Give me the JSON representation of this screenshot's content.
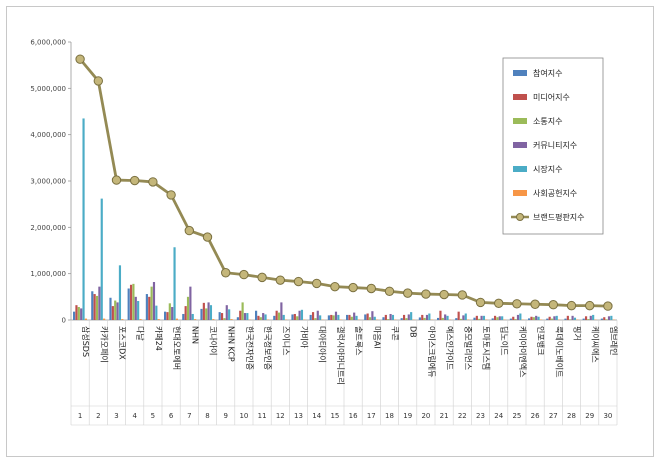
{
  "chart_data": {
    "type": "bar",
    "title": "",
    "xlabel": "",
    "ylabel": "",
    "ylim": [
      0,
      6000000
    ],
    "yticks": [
      "0",
      "1,000,000",
      "2,000,000",
      "3,000,000",
      "4,000,000",
      "5,000,000",
      "6,000,000"
    ],
    "grid": false,
    "legend_position": "top-right",
    "indices": [
      "1",
      "2",
      "3",
      "4",
      "5",
      "6",
      "7",
      "8",
      "9",
      "10",
      "11",
      "12",
      "13",
      "14",
      "15",
      "16",
      "17",
      "18",
      "19",
      "20",
      "21",
      "22",
      "23",
      "24",
      "25",
      "26",
      "27",
      "28",
      "29",
      "30"
    ],
    "categories": [
      "삼성SDS",
      "카카오페이",
      "포스코DX",
      "다날",
      "카페24",
      "현대오토에버",
      "NHN",
      "코나아이",
      "NHN KCP",
      "한국전자인증",
      "한국정보인증",
      "즈이니스",
      "가비아",
      "대아티아이",
      "갤럭시아머니트리",
      "솔트룩스",
      "마음AI",
      "쿠콘",
      "DB",
      "아이스크림에듀",
      "예스인가이드",
      "중모빌리언스",
      "토마토시스템",
      "딥노이드",
      "케이아이엔엑스",
      "인포뱅크",
      "룩데이노베이트",
      "핑거",
      "케이씨에스",
      "엠브레인"
    ],
    "colors": {
      "participation": "#4f81bd",
      "media": "#c0504d",
      "communication": "#9bbb59",
      "community": "#8064a2",
      "market": "#4bacc6",
      "social": "#f79646",
      "brand": "#948a54"
    },
    "series": [
      {
        "key": "participation",
        "name": "참여지수",
        "values": [
          180000,
          620000,
          480000,
          680000,
          560000,
          180000,
          130000,
          240000,
          170000,
          60000,
          200000,
          90000,
          120000,
          110000,
          100000,
          110000,
          120000,
          60000,
          40000,
          55000,
          45000,
          40000,
          50000,
          35000,
          30000,
          35000,
          30000,
          30000,
          30000,
          30000
        ]
      },
      {
        "key": "media",
        "name": "미디어지수",
        "values": [
          320000,
          560000,
          300000,
          760000,
          500000,
          170000,
          300000,
          370000,
          150000,
          200000,
          90000,
          200000,
          130000,
          170000,
          110000,
          110000,
          140000,
          110000,
          110000,
          110000,
          200000,
          180000,
          90000,
          90000,
          70000,
          70000,
          70000,
          90000,
          80000,
          60000
        ]
      },
      {
        "key": "communication",
        "name": "소통지수",
        "values": [
          280000,
          520000,
          420000,
          780000,
          720000,
          360000,
          500000,
          250000,
          40000,
          380000,
          60000,
          160000,
          80000,
          40000,
          100000,
          70000,
          60000,
          20000,
          40000,
          45000,
          45000,
          25000,
          25000,
          60000,
          20000,
          60000,
          30000,
          15000,
          20000,
          15000
        ]
      },
      {
        "key": "community",
        "name": "커뮤니티지수",
        "values": [
          250000,
          720000,
          380000,
          500000,
          820000,
          280000,
          720000,
          380000,
          320000,
          150000,
          150000,
          380000,
          200000,
          200000,
          180000,
          160000,
          190000,
          130000,
          120000,
          110000,
          120000,
          100000,
          90000,
          80000,
          110000,
          90000,
          80000,
          90000,
          90000,
          80000
        ]
      },
      {
        "key": "market",
        "name": "시장지수",
        "values": [
          4350000,
          2620000,
          1180000,
          410000,
          310000,
          1570000,
          130000,
          320000,
          230000,
          150000,
          120000,
          110000,
          220000,
          100000,
          110000,
          90000,
          70000,
          110000,
          170000,
          140000,
          90000,
          140000,
          90000,
          80000,
          140000,
          70000,
          90000,
          50000,
          110000,
          90000
        ]
      },
      {
        "key": "social",
        "name": "사회공헌지수",
        "values": [
          30000,
          30000,
          20000,
          20000,
          20000,
          30000,
          20000,
          20000,
          20000,
          10000,
          10000,
          10000,
          10000,
          10000,
          10000,
          10000,
          10000,
          10000,
          10000,
          10000,
          10000,
          10000,
          10000,
          10000,
          10000,
          10000,
          10000,
          10000,
          10000,
          10000
        ]
      },
      {
        "key": "brand",
        "name": "브랜드평판지수",
        "values": [
          5630000,
          5160000,
          3020000,
          3010000,
          2980000,
          2700000,
          1930000,
          1790000,
          1020000,
          980000,
          920000,
          860000,
          830000,
          790000,
          720000,
          700000,
          680000,
          620000,
          580000,
          560000,
          550000,
          540000,
          380000,
          360000,
          350000,
          340000,
          330000,
          310000,
          310000,
          300000
        ]
      }
    ]
  }
}
